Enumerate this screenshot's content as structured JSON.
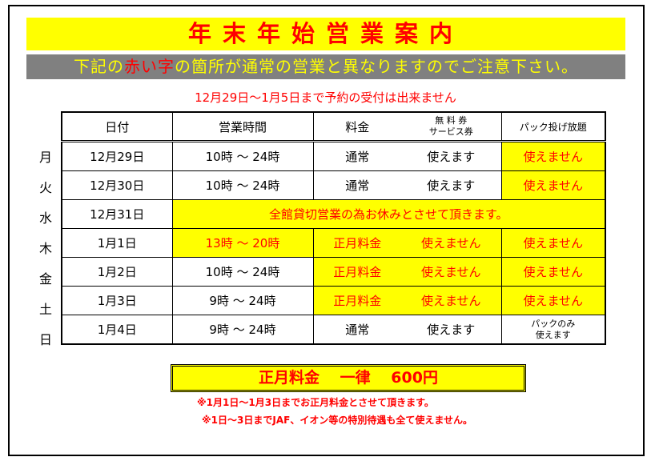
{
  "title": "年末年始営業案内",
  "subtitle": {
    "pre": "下記の",
    "red": "赤い字",
    "post": "の箇所が通常の営業と異なりますのでご注意下さい。"
  },
  "notice": "12月29日～1月5日まで予約の受付は出来ません",
  "headers": {
    "date": "日付",
    "hours": "営業時間",
    "fee": "料金",
    "voucher": "無 料 券\nサービス券",
    "pack": "パック投げ放題"
  },
  "rows": [
    {
      "day": "月",
      "date": "12月29日",
      "hours": "10時 ～ 24時",
      "fee": "通常",
      "voucher": "使えます",
      "pack": "使えません"
    },
    {
      "day": "火",
      "date": "12月30日",
      "hours": "10時 ～ 24時",
      "fee": "通常",
      "voucher": "使えます",
      "pack": "使えません"
    },
    {
      "day": "水",
      "date": "12月31日",
      "closed": "全館貸切営業の為お休みとさせて頂きます。"
    },
    {
      "day": "木",
      "date": "1月1日",
      "hours": "13時 ～ 20時",
      "fee": "正月料金",
      "voucher": "使えません",
      "pack": "使えません"
    },
    {
      "day": "金",
      "date": "1月2日",
      "hours": "10時 ～ 24時",
      "fee": "正月料金",
      "voucher": "使えません",
      "pack": "使えません"
    },
    {
      "day": "土",
      "date": "1月3日",
      "hours": "9時 ～ 24時",
      "fee": "正月料金",
      "voucher": "使えません",
      "pack": "使えません"
    },
    {
      "day": "日",
      "date": "1月4日",
      "hours": "9時 ～ 24時",
      "fee": "通常",
      "voucher": "使えます",
      "pack": "パックのみ\n使えます"
    }
  ],
  "price": "正月料金　 一律　 600円",
  "note1": "※1月1日～1月3日までお正月料金とさせて頂きます。",
  "note2": "※1日～3日までJAF、イオン等の特別待遇も全て使えません。",
  "colors": {
    "highlight": "#ffff00",
    "red": "#ff0000",
    "gray": "#808080"
  }
}
